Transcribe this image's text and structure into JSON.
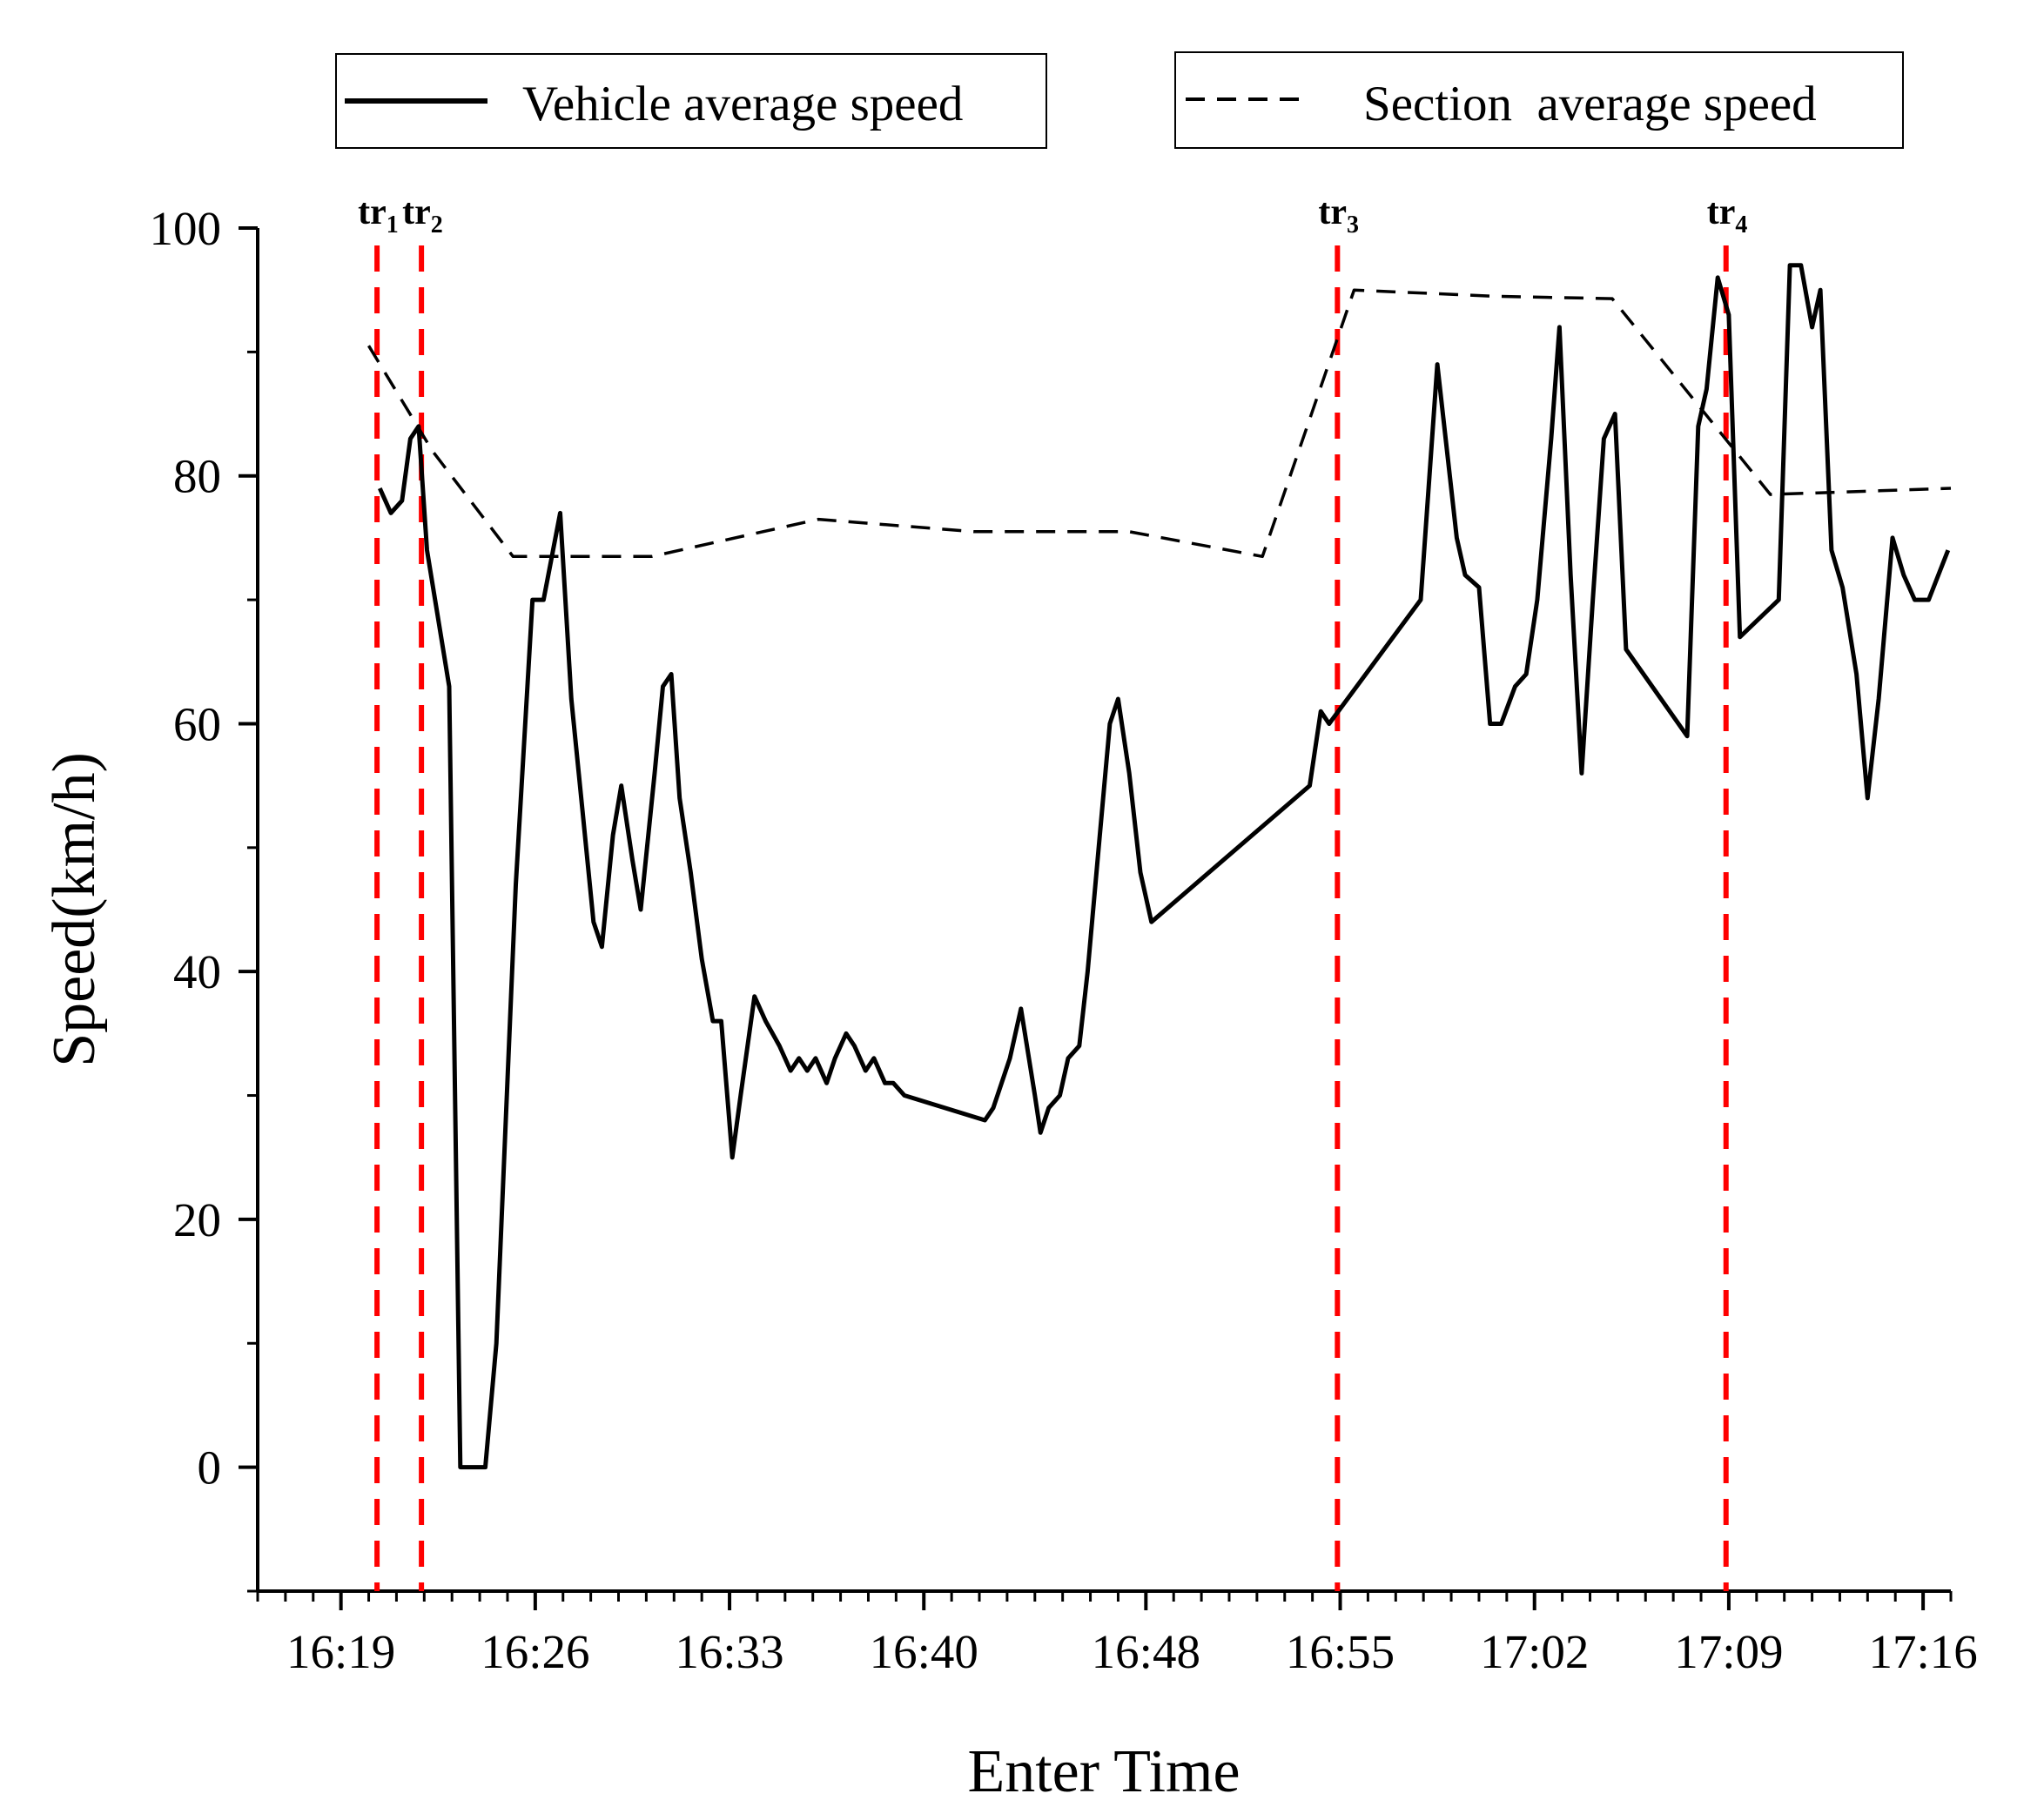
{
  "chart_data": {
    "type": "line",
    "xlabel": "Enter Time",
    "ylabel": "Speed(km/h)",
    "x_unit": "minutes since 16:00",
    "xlim": [
      16.0,
      77.0
    ],
    "ylim": [
      -10,
      100
    ],
    "x_ticks": [
      {
        "value": 19.0,
        "label": "16:19"
      },
      {
        "value": 26.0,
        "label": "16:26"
      },
      {
        "value": 33.0,
        "label": "16:33"
      },
      {
        "value": 40.0,
        "label": "16:40"
      },
      {
        "value": 48.0,
        "label": "16:48"
      },
      {
        "value": 55.0,
        "label": "16:55"
      },
      {
        "value": 62.0,
        "label": "17:02"
      },
      {
        "value": 69.0,
        "label": "17:09"
      },
      {
        "value": 76.0,
        "label": "17:16"
      }
    ],
    "y_ticks": [
      0,
      20,
      40,
      60,
      80,
      100
    ],
    "y_minor_ticks": [
      -10,
      10,
      30,
      50,
      70,
      90
    ],
    "series": [
      {
        "name": "Vehicle average speed",
        "style": "solid",
        "color": "#000000",
        "points": [
          [
            20.4,
            79
          ],
          [
            20.8,
            77
          ],
          [
            21.2,
            78
          ],
          [
            21.5,
            83
          ],
          [
            21.8,
            84
          ],
          [
            22.1,
            74
          ],
          [
            22.9,
            63
          ],
          [
            23.3,
            0
          ],
          [
            24.2,
            0
          ],
          [
            24.6,
            10
          ],
          [
            24.9,
            26
          ],
          [
            25.3,
            47
          ],
          [
            25.9,
            70
          ],
          [
            26.3,
            70
          ],
          [
            26.9,
            77
          ],
          [
            27.3,
            62
          ],
          [
            27.7,
            53
          ],
          [
            28.1,
            44
          ],
          [
            28.4,
            42
          ],
          [
            28.8,
            51
          ],
          [
            29.1,
            55
          ],
          [
            29.5,
            49
          ],
          [
            29.8,
            45
          ],
          [
            30.3,
            56
          ],
          [
            30.6,
            63
          ],
          [
            30.9,
            64
          ],
          [
            31.2,
            54
          ],
          [
            31.6,
            48
          ],
          [
            32.0,
            41
          ],
          [
            32.4,
            36
          ],
          [
            32.7,
            36
          ],
          [
            33.1,
            25
          ],
          [
            33.4,
            30
          ],
          [
            33.9,
            38
          ],
          [
            34.3,
            36
          ],
          [
            34.8,
            34
          ],
          [
            35.2,
            32
          ],
          [
            35.5,
            33
          ],
          [
            35.8,
            32
          ],
          [
            36.1,
            33
          ],
          [
            36.5,
            31
          ],
          [
            36.8,
            33
          ],
          [
            37.2,
            35
          ],
          [
            37.5,
            34
          ],
          [
            37.9,
            32
          ],
          [
            38.2,
            33
          ],
          [
            38.6,
            31
          ],
          [
            38.9,
            31
          ],
          [
            39.3,
            30
          ],
          [
            42.2,
            28
          ],
          [
            42.5,
            29
          ],
          [
            43.1,
            33
          ],
          [
            43.5,
            37
          ],
          [
            44.0,
            30
          ],
          [
            44.2,
            27
          ],
          [
            44.5,
            29
          ],
          [
            44.9,
            30
          ],
          [
            45.2,
            33
          ],
          [
            45.6,
            34
          ],
          [
            45.9,
            40
          ],
          [
            46.3,
            50
          ],
          [
            46.7,
            60
          ],
          [
            47.0,
            62
          ],
          [
            47.4,
            56
          ],
          [
            47.8,
            48
          ],
          [
            48.2,
            44
          ],
          [
            53.9,
            55
          ],
          [
            54.3,
            61
          ],
          [
            54.6,
            60
          ],
          [
            57.9,
            70
          ],
          [
            58.5,
            89
          ],
          [
            59.2,
            75
          ],
          [
            59.5,
            72
          ],
          [
            60.0,
            71
          ],
          [
            60.4,
            60
          ],
          [
            60.8,
            60
          ],
          [
            61.3,
            63
          ],
          [
            61.7,
            64
          ],
          [
            62.1,
            70
          ],
          [
            62.6,
            83
          ],
          [
            62.9,
            92
          ],
          [
            63.3,
            72
          ],
          [
            63.7,
            56
          ],
          [
            64.1,
            70
          ],
          [
            64.5,
            83
          ],
          [
            64.9,
            85
          ],
          [
            65.3,
            66
          ],
          [
            67.5,
            59
          ],
          [
            67.9,
            84
          ],
          [
            68.2,
            87
          ],
          [
            68.6,
            96
          ],
          [
            69.0,
            93
          ],
          [
            69.4,
            67
          ],
          [
            70.8,
            70
          ],
          [
            71.2,
            97
          ],
          [
            71.6,
            97
          ],
          [
            72.0,
            92
          ],
          [
            72.3,
            95
          ],
          [
            72.7,
            74
          ],
          [
            73.1,
            71
          ],
          [
            73.6,
            64
          ],
          [
            74.0,
            54
          ],
          [
            74.4,
            62
          ],
          [
            74.9,
            75
          ],
          [
            75.3,
            72
          ],
          [
            75.7,
            70
          ],
          [
            76.2,
            70
          ],
          [
            76.9,
            74
          ]
        ]
      },
      {
        "name": "Section average speed",
        "style": "dashed",
        "color": "#000000",
        "points": [
          [
            20.0,
            90.5
          ],
          [
            22.3,
            82
          ],
          [
            25.2,
            73.5
          ],
          [
            30.2,
            73.5
          ],
          [
            36.2,
            76.5
          ],
          [
            41.8,
            75.5
          ],
          [
            47.4,
            75.5
          ],
          [
            52.2,
            73.5
          ],
          [
            55.5,
            95
          ],
          [
            60.5,
            94.5
          ],
          [
            64.8,
            94.3
          ],
          [
            70.5,
            78.5
          ],
          [
            77.0,
            79
          ]
        ]
      }
    ],
    "markers": [
      {
        "name": "tr",
        "subscript": "1",
        "x": 20.3,
        "color": "#ff0000"
      },
      {
        "name": "tr",
        "subscript": "2",
        "x": 21.9,
        "color": "#ff0000"
      },
      {
        "name": "tr",
        "subscript": "3",
        "x": 54.9,
        "color": "#ff0000"
      },
      {
        "name": "tr",
        "subscript": "4",
        "x": 68.9,
        "color": "#ff0000"
      }
    ],
    "legend": [
      {
        "label": "Vehicle average speed",
        "style": "solid"
      },
      {
        "label": "Section  average speed",
        "style": "dashed"
      }
    ],
    "legend_position": "top"
  }
}
